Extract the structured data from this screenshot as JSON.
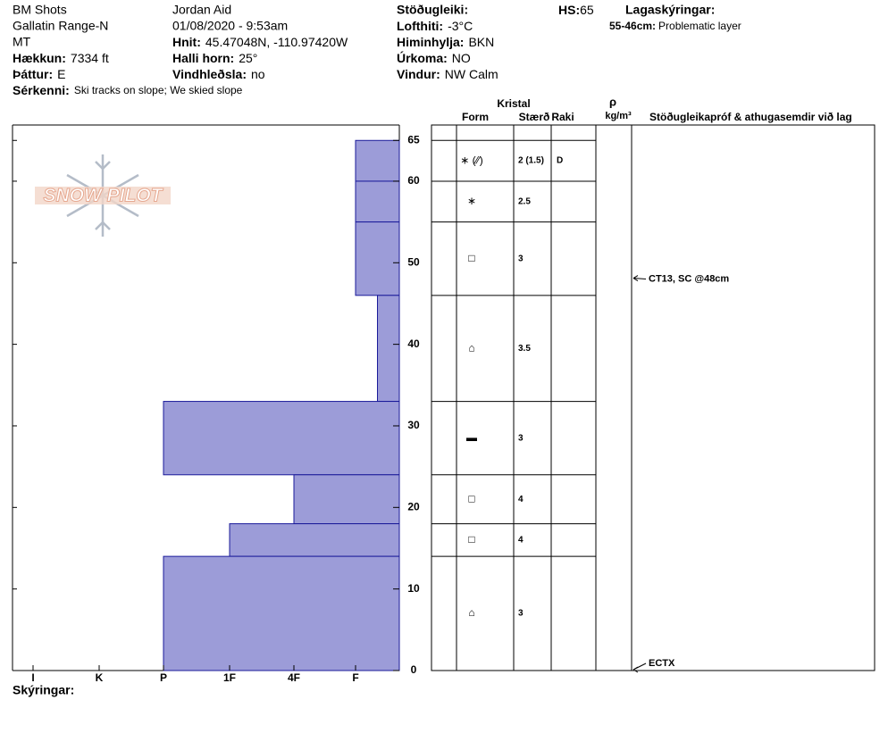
{
  "header": {
    "site": "BM Shots",
    "location": "Gallatin Range-N",
    "state": "MT",
    "observer": "Jordan Aid",
    "date": "01/08/2020 - 9:53am",
    "fields": [
      {
        "label": "Hækkun:",
        "value": "7334 ft"
      },
      {
        "label": "Þáttur:",
        "value": "E"
      },
      {
        "label": "Sérkenni:",
        "value": "Ski tracks on slope; We skied slope"
      },
      {
        "label": "Hnit:",
        "value": "45.47048N, -110.97420W"
      },
      {
        "label": "Halli horn:",
        "value": "25°"
      },
      {
        "label": "Vindhleðsla:",
        "value": "no"
      },
      {
        "label": "Stöðugleiki:"
      },
      {
        "label": "Lofthiti:",
        "value": "-3°C"
      },
      {
        "label": "Himinhylja:",
        "value": "BKN"
      },
      {
        "label": "Úrkoma:",
        "value": "NO"
      },
      {
        "label": "Vindur:",
        "value": "NW Calm"
      }
    ],
    "hs_label": "HS:",
    "hs": 65,
    "legend_title": "Lagaskýringar:",
    "legend": [
      {
        "label": "55-46cm:",
        "value": "Problematic layer"
      }
    ],
    "notes_label": "Skýringar:"
  },
  "logo": "SNOW PILOT",
  "chart_data": {
    "type": "hardness-profile",
    "color": "#9c9cd8",
    "ylim": [
      0,
      67
    ],
    "yticks": [
      0,
      10,
      20,
      30,
      40,
      50,
      60,
      65
    ],
    "xticks": [
      {
        "value": 6,
        "label": "I"
      },
      {
        "value": 5,
        "label": "K"
      },
      {
        "value": 4,
        "label": "P"
      },
      {
        "value": 3,
        "label": "1F"
      },
      {
        "value": 2,
        "label": "4F"
      },
      {
        "value": 1,
        "label": "F"
      }
    ],
    "columns": {
      "crystal": "Kristal",
      "form": "Form",
      "size": "Stærð",
      "moisture": "Raki",
      "density_symbol": "ρ",
      "density_unit": "kg/m³",
      "tests": "Stöðugleikapróf & athugasemdir við lag"
    },
    "layers": [
      {
        "top": 65,
        "bottom": 60,
        "hardness": 1,
        "form": "∗ (⁄⁄)",
        "size": "2 (1.5)",
        "moisture": "D"
      },
      {
        "top": 60,
        "bottom": 55,
        "hardness": 1,
        "form": "∗",
        "size": 2.5
      },
      {
        "top": 55,
        "bottom": 46,
        "hardness": 1,
        "form": "□",
        "size": 3
      },
      {
        "top": 46,
        "bottom": 33,
        "hardness": 0.5,
        "form": "⌂",
        "size": 3.5
      },
      {
        "top": 33,
        "bottom": 24,
        "hardness": 4,
        "form": "▬",
        "size": 3
      },
      {
        "top": 24,
        "bottom": 18,
        "hardness": 2,
        "form": "□",
        "size": 4
      },
      {
        "top": 18,
        "bottom": 14,
        "hardness": 3,
        "form": "□",
        "size": 4
      },
      {
        "top": 14,
        "bottom": 0,
        "hardness": 4,
        "form": "⌂",
        "size": 3
      }
    ],
    "tests": [
      {
        "depth": 48,
        "label": "CT13, SC @48cm"
      },
      {
        "depth": 0,
        "label": "ECTX"
      }
    ]
  }
}
